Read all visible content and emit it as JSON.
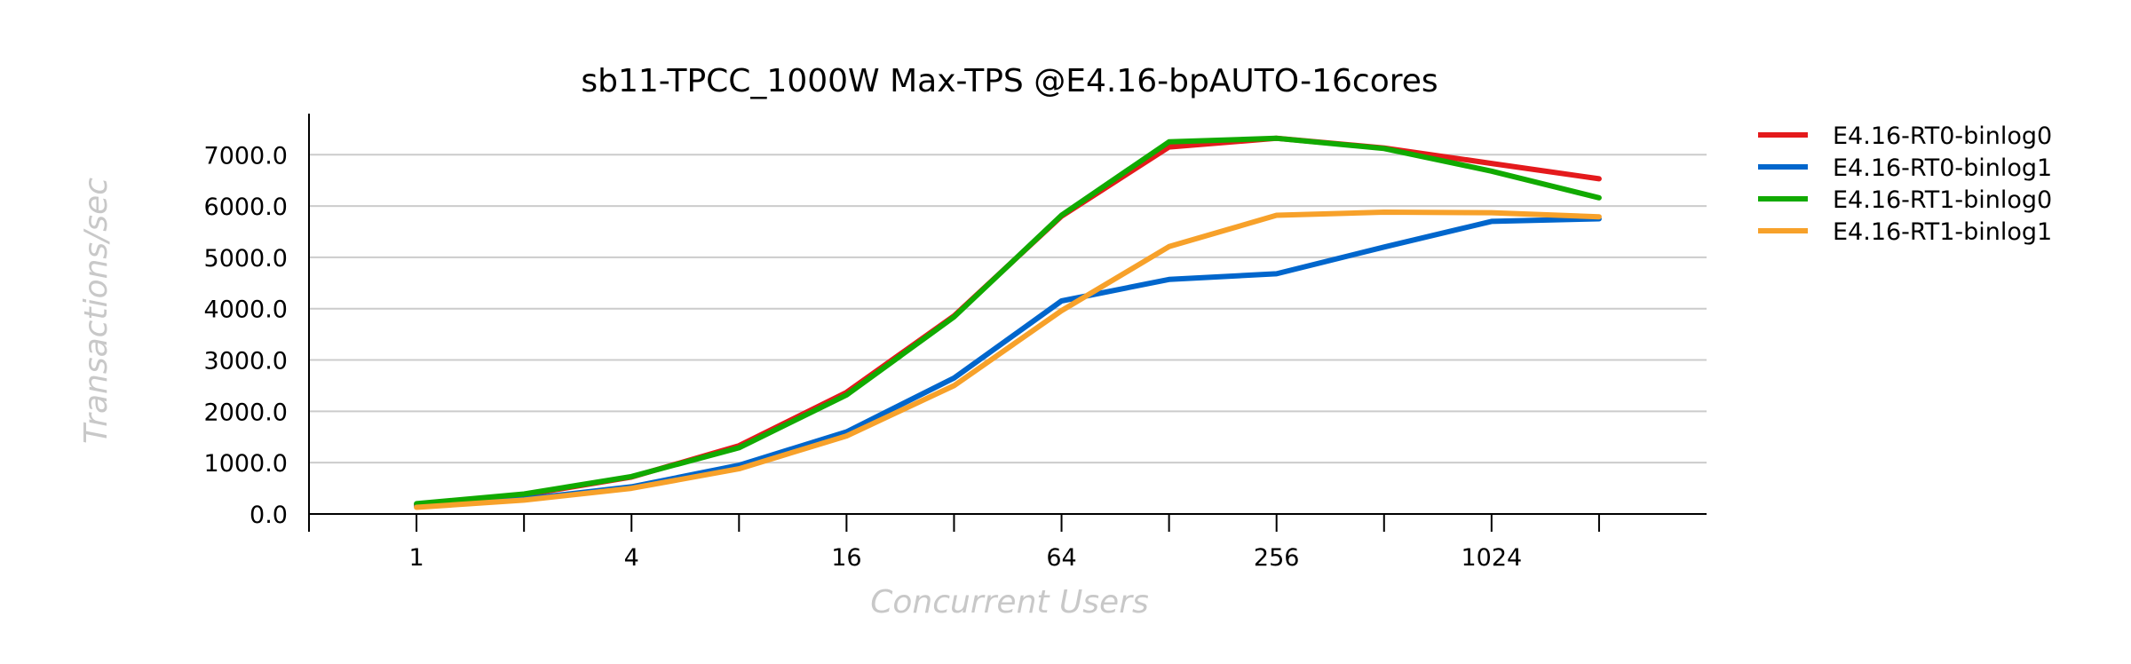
{
  "chart_data": {
    "type": "line",
    "title": "sb11-TPCC_1000W Max-TPS @E4.16-bpAUTO-16cores",
    "xlabel": "Concurrent Users",
    "ylabel": "Transactions/sec",
    "x": [
      1,
      2,
      4,
      8,
      16,
      32,
      64,
      128,
      256,
      512,
      1024,
      2048
    ],
    "x_tick_labels": [
      "1",
      "4",
      "16",
      "64",
      "256",
      "1024"
    ],
    "x_tick_values": [
      1,
      4,
      16,
      64,
      256,
      1024
    ],
    "x_scale": "log2",
    "xlim": [
      0.5,
      4096
    ],
    "y_ticks": [
      "0.0",
      "1000.0",
      "2000.0",
      "3000.0",
      "4000.0",
      "5000.0",
      "6000.0",
      "7000.0"
    ],
    "ylim": [
      0,
      7800
    ],
    "grid": "horizontal",
    "legend_position": "right",
    "series": [
      {
        "name": "E4.16-RT0-binlog0",
        "color": "#e41a1c",
        "values": [
          180,
          370,
          720,
          1330,
          2370,
          3860,
          5800,
          7150,
          7320,
          7130,
          6830,
          6530
        ]
      },
      {
        "name": "E4.16-RT0-binlog1",
        "color": "#0066cc",
        "values": [
          150,
          290,
          530,
          950,
          1600,
          2650,
          4150,
          4570,
          4680,
          5200,
          5700,
          5750
        ]
      },
      {
        "name": "E4.16-RT1-binlog0",
        "color": "#11aa00",
        "values": [
          200,
          390,
          730,
          1290,
          2320,
          3840,
          5820,
          7250,
          7320,
          7120,
          6680,
          6160
        ]
      },
      {
        "name": "E4.16-RT1-binlog1",
        "color": "#f7a12a",
        "values": [
          130,
          270,
          500,
          880,
          1520,
          2500,
          3960,
          5210,
          5820,
          5880,
          5870,
          5790
        ]
      }
    ]
  }
}
